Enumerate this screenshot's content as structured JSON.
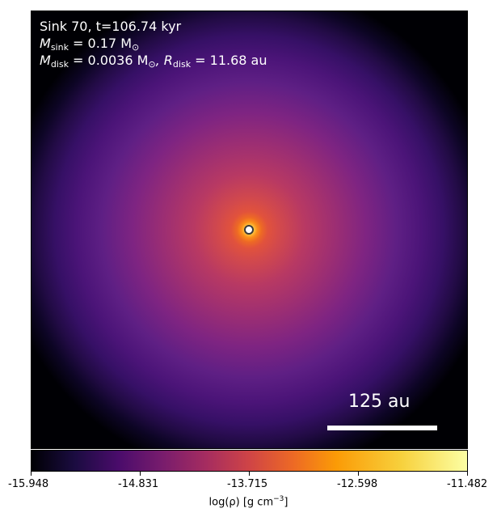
{
  "panel": {
    "title": "Sink 70, t=106.74 kyr",
    "mass_sink_label": "M",
    "mass_sink_sub": "sink",
    "mass_sink_value": " = 0.17 M",
    "mass_sink_unit_sub": "⊙",
    "mass_disk_label": "M",
    "mass_disk_sub": "disk",
    "mass_disk_value": " = 0.0036 M",
    "mass_disk_unit_sub": "⊙",
    "radius_disk_label": ", R",
    "radius_disk_sub": "disk",
    "radius_disk_value": " = 11.68 au",
    "scale_bar_label": "125 au"
  },
  "colorbar": {
    "ticks": [
      "-15.948",
      "-14.831",
      "-13.715",
      "-12.598",
      "-11.482"
    ],
    "label_main": "log(ρ) [g cm",
    "label_sup": "−3",
    "label_end": "]",
    "colormap": "inferno"
  }
}
